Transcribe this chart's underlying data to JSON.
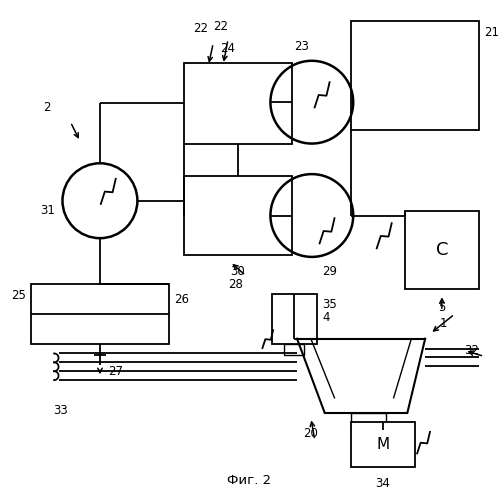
{
  "title": "Фиг. 2",
  "background_color": "#ffffff",
  "fig_width": 5.02,
  "fig_height": 5.0,
  "dpi": 100
}
